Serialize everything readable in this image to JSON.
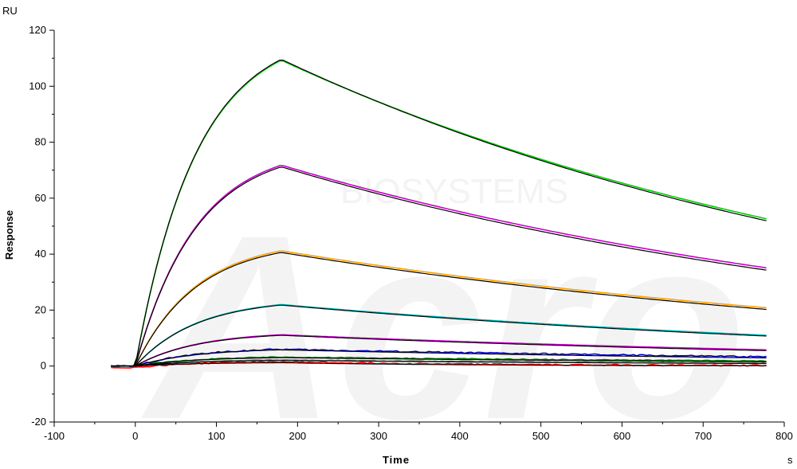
{
  "chart_data": {
    "type": "line",
    "title": "",
    "xlabel": "Time",
    "ylabel": "Response",
    "x_unit": "s",
    "y_unit": "RU",
    "xlim": [
      -100,
      800
    ],
    "ylim": [
      -20,
      120
    ],
    "x_ticks": [
      -100,
      0,
      100,
      200,
      300,
      400,
      500,
      600,
      700,
      800
    ],
    "y_ticks": [
      -20,
      0,
      20,
      40,
      60,
      80,
      100,
      120
    ],
    "grid": false,
    "legend": "none",
    "watermark": [
      "BIOSYSTEMS",
      "Acro"
    ],
    "injection": {
      "start": 0,
      "end": 180,
      "pre_start": -30,
      "end_time": 780
    },
    "series": [
      {
        "color": "#00d000",
        "baseline": 0,
        "peak": 109.3,
        "end": 52.5,
        "noise": 0
      },
      {
        "color": "#cc00cc",
        "baseline": 0,
        "peak": 71.8,
        "end": 35.0,
        "noise": 0
      },
      {
        "color": "#ffa500",
        "baseline": 0,
        "peak": 41.2,
        "end": 20.8,
        "noise": 0
      },
      {
        "color": "#00c8c8",
        "baseline": 0,
        "peak": 22.0,
        "end": 11.0,
        "noise": 0
      },
      {
        "color": "#e000e0",
        "baseline": 0,
        "peak": 11.2,
        "end": 5.8,
        "noise": 0
      },
      {
        "color": "#0000cc",
        "baseline": 0,
        "peak": 6.0,
        "end": 3.3,
        "noise": 0.5
      },
      {
        "color": "#008000",
        "baseline": 0,
        "peak": 3.2,
        "end": 1.8,
        "noise": 0.3
      },
      {
        "color": "#808080",
        "baseline": 0,
        "peak": 2.2,
        "end": 1.0,
        "noise": 0.3
      },
      {
        "color": "#ff0000",
        "baseline": -0.5,
        "peak": 1.5,
        "end": 0.2,
        "noise": 0.5
      }
    ],
    "fits": [
      {
        "color": "#000000",
        "peak": 109.6,
        "end": 51.8
      },
      {
        "color": "#000000",
        "peak": 71.2,
        "end": 34.2
      },
      {
        "color": "#000000",
        "peak": 40.6,
        "end": 20.2
      },
      {
        "color": "#000000",
        "peak": 21.8,
        "end": 10.7
      },
      {
        "color": "#000000",
        "peak": 11.0,
        "end": 5.5
      },
      {
        "color": "#000000",
        "peak": 5.8,
        "end": 2.9
      },
      {
        "color": "#000000",
        "peak": 3.0,
        "end": 1.5
      },
      {
        "color": "#000000",
        "peak": 2.0,
        "end": 0.9
      },
      {
        "color": "#000000",
        "peak": 1.2,
        "end": 0.1
      }
    ]
  }
}
